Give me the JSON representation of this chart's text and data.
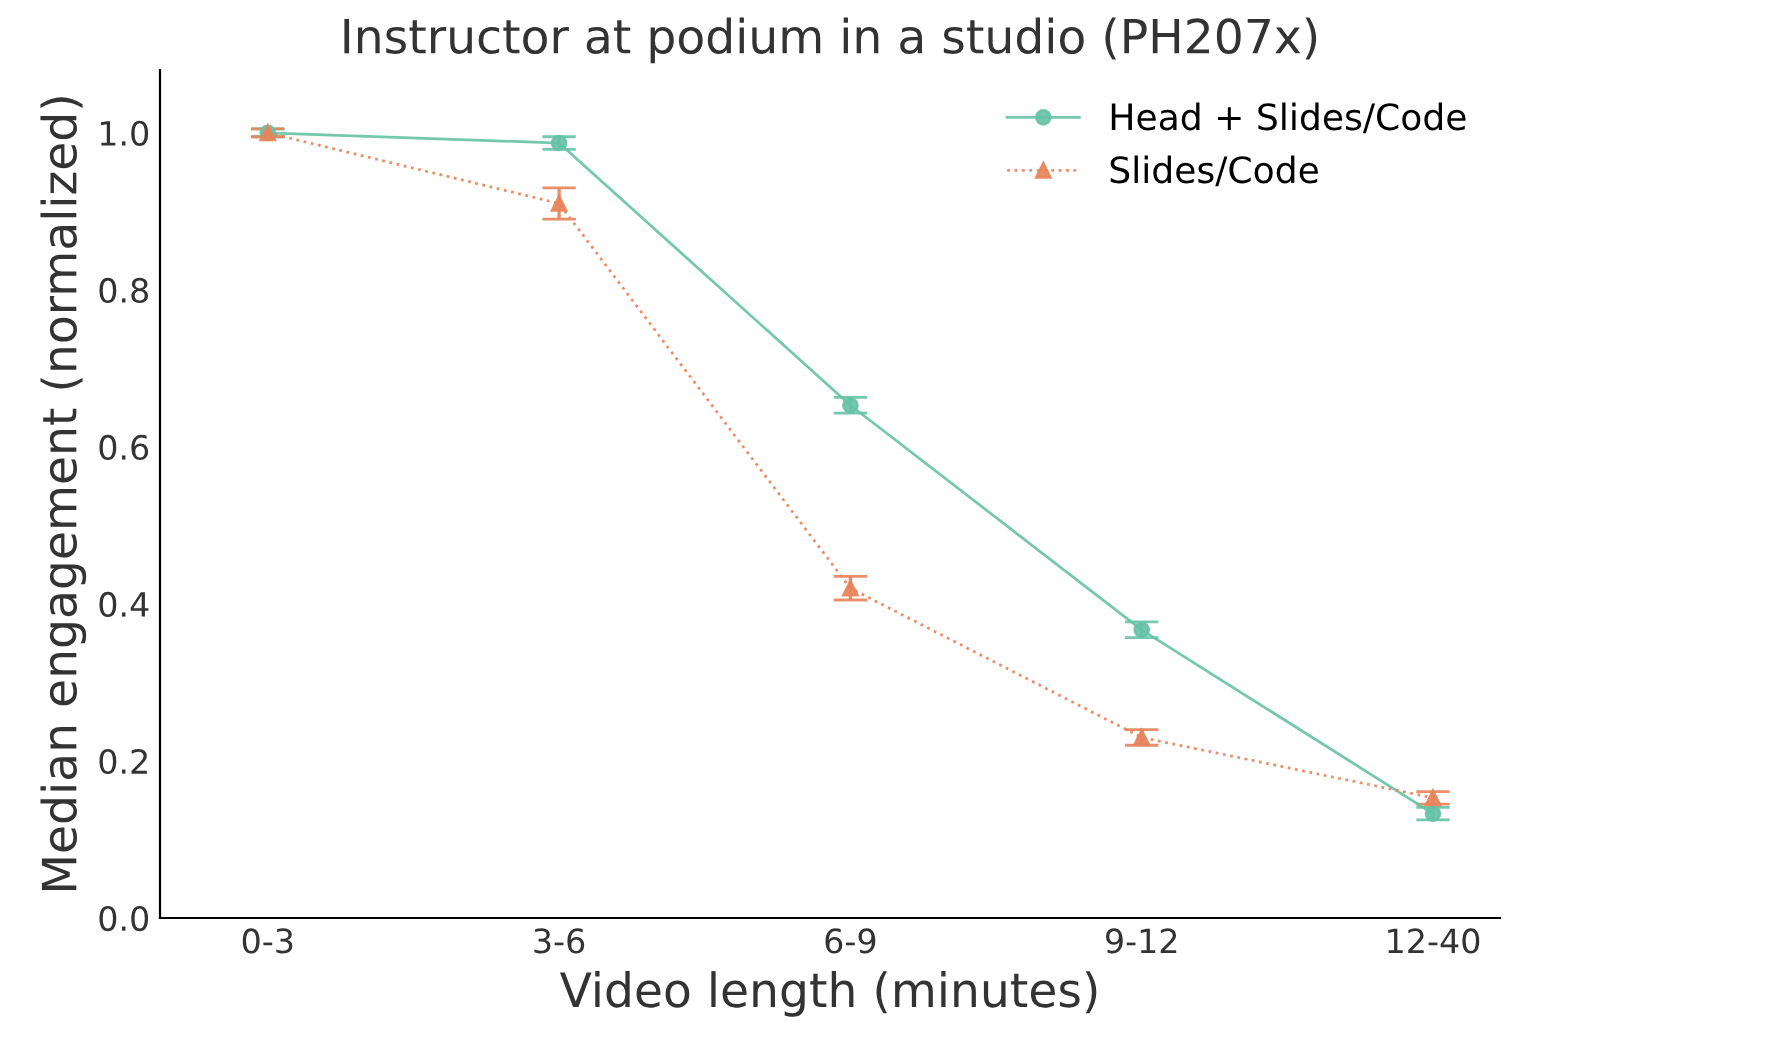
{
  "chart_data": {
    "type": "line",
    "title": "Instructor at podium in a studio (PH207x)",
    "xlabel": "Video length (minutes)",
    "ylabel": "Median engagement (normalized)",
    "categories": [
      "0-3",
      "3-6",
      "6-9",
      "9-12",
      "12-40"
    ],
    "series": [
      {
        "name": "Head + Slides/Code",
        "color": "#66c2a5",
        "marker": "circle",
        "line_style": "solid",
        "values": [
          1.0,
          0.987,
          0.653,
          0.367,
          0.133
        ],
        "errors": [
          0.005,
          0.008,
          0.01,
          0.01,
          0.008
        ]
      },
      {
        "name": "Slides/Code",
        "color": "#e8835a",
        "marker": "triangle",
        "line_style": "dotted",
        "values": [
          1.0,
          0.91,
          0.42,
          0.23,
          0.153
        ],
        "errors": [
          0.005,
          0.02,
          0.015,
          0.01,
          0.008
        ]
      }
    ],
    "ylim": [
      0,
      1.08
    ],
    "yticks": [
      {
        "value": 0,
        "label": "0.0"
      },
      {
        "value": 0.2,
        "label": "0.2"
      },
      {
        "value": 0.4,
        "label": "0.4"
      },
      {
        "value": 0.6,
        "label": "0.6"
      },
      {
        "value": 0.8,
        "label": "0.8"
      },
      {
        "value": 1,
        "label": "1.0"
      }
    ],
    "grid": false,
    "legend": "top right"
  }
}
